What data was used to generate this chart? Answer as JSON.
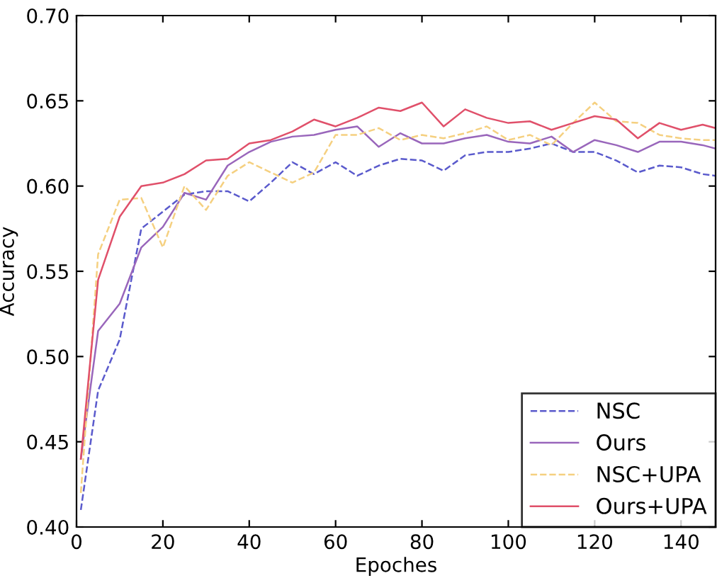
{
  "chart_data": {
    "type": "line",
    "xlabel": "Epoches",
    "ylabel": "Accuracy",
    "x": [
      1,
      5,
      10,
      15,
      20,
      25,
      30,
      35,
      40,
      45,
      50,
      55,
      60,
      65,
      70,
      75,
      80,
      85,
      90,
      95,
      100,
      105,
      110,
      115,
      120,
      125,
      130,
      135,
      140,
      145,
      148
    ],
    "xlim": [
      0,
      148
    ],
    "xticks": [
      0,
      20,
      40,
      60,
      80,
      100,
      120,
      140
    ],
    "ylim": [
      0.4,
      0.7
    ],
    "yticks": [
      {
        "value": 0.4,
        "label": "0.40"
      },
      {
        "value": 0.45,
        "label": "0.45"
      },
      {
        "value": 0.5,
        "label": "0.50"
      },
      {
        "value": 0.55,
        "label": "0.55"
      },
      {
        "value": 0.6,
        "label": "0.60"
      },
      {
        "value": 0.65,
        "label": "0.65"
      },
      {
        "value": 0.7,
        "label": "0.70"
      }
    ],
    "grid": false,
    "legend": "bottom right",
    "series": [
      {
        "name": "NSC",
        "color": "#5a5acc",
        "line_style": "dashed",
        "values": [
          0.41,
          0.48,
          0.51,
          0.575,
          0.585,
          0.595,
          0.597,
          0.597,
          0.591,
          0.602,
          0.614,
          0.607,
          0.614,
          0.606,
          0.612,
          0.616,
          0.615,
          0.609,
          0.618,
          0.62,
          0.62,
          0.622,
          0.625,
          0.62,
          0.62,
          0.615,
          0.608,
          0.612,
          0.611,
          0.607,
          0.606
        ]
      },
      {
        "name": "Ours",
        "color": "#9966bb",
        "line_style": "solid",
        "values": [
          0.44,
          0.515,
          0.531,
          0.564,
          0.576,
          0.596,
          0.592,
          0.612,
          0.62,
          0.626,
          0.629,
          0.63,
          0.633,
          0.635,
          0.623,
          0.631,
          0.625,
          0.625,
          0.628,
          0.63,
          0.626,
          0.625,
          0.629,
          0.62,
          0.627,
          0.624,
          0.62,
          0.626,
          0.626,
          0.624,
          0.622
        ]
      },
      {
        "name": "NSC+UPA",
        "color": "#f5d080",
        "line_style": "dashed",
        "values": [
          0.42,
          0.56,
          0.592,
          0.593,
          0.564,
          0.6,
          0.586,
          0.606,
          0.614,
          0.608,
          0.602,
          0.608,
          0.63,
          0.63,
          0.634,
          0.627,
          0.63,
          0.628,
          0.631,
          0.635,
          0.627,
          0.63,
          0.624,
          0.637,
          0.649,
          0.638,
          0.637,
          0.63,
          0.628,
          0.627,
          0.627
        ]
      },
      {
        "name": "Ours+UPA",
        "color": "#e0506a",
        "line_style": "solid",
        "values": [
          0.44,
          0.545,
          0.582,
          0.6,
          0.602,
          0.607,
          0.615,
          0.616,
          0.625,
          0.627,
          0.632,
          0.639,
          0.635,
          0.64,
          0.646,
          0.644,
          0.649,
          0.635,
          0.645,
          0.64,
          0.637,
          0.638,
          0.633,
          0.637,
          0.641,
          0.639,
          0.628,
          0.637,
          0.633,
          0.636,
          0.634
        ]
      }
    ]
  }
}
